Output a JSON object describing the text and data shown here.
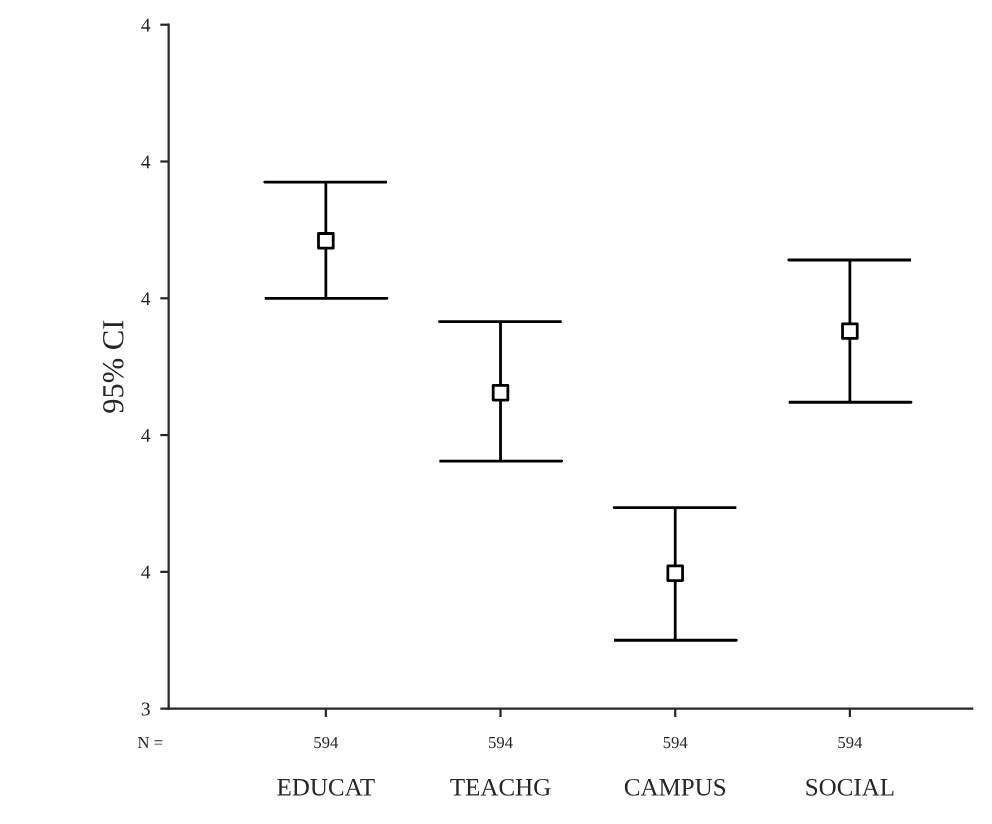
{
  "chart_data": {
    "type": "scatter",
    "ylabel": "95% CI",
    "categories": [
      "EDUCAT",
      "TEACHG",
      "CAMPUS",
      "SOCIAL"
    ],
    "color": "#000000",
    "values": [
      3.742,
      3.631,
      3.499,
      3.676
    ],
    "errors": [
      [
        3.7,
        3.785
      ],
      [
        3.581,
        3.683
      ],
      [
        3.45,
        3.547
      ],
      [
        3.624,
        3.728
      ]
    ],
    "ylim": [
      3.4,
      3.9
    ],
    "yticks": [
      {
        "value": 3.4,
        "label": "3"
      },
      {
        "value": 3.5,
        "label": "4"
      },
      {
        "value": 3.6,
        "label": "4"
      },
      {
        "value": 3.7,
        "label": "4"
      },
      {
        "value": 3.8,
        "label": "4"
      },
      {
        "value": 3.9,
        "label": "4"
      }
    ],
    "marker": "square",
    "grid": false,
    "legend": false,
    "annotations": [
      "N =",
      {
        "text": "594",
        "x": "EDUCAT"
      },
      {
        "text": "594",
        "x": "TEACHG"
      },
      {
        "text": "594",
        "x": "CAMPUS"
      },
      {
        "text": "594",
        "x": "SOCIAL"
      }
    ]
  }
}
